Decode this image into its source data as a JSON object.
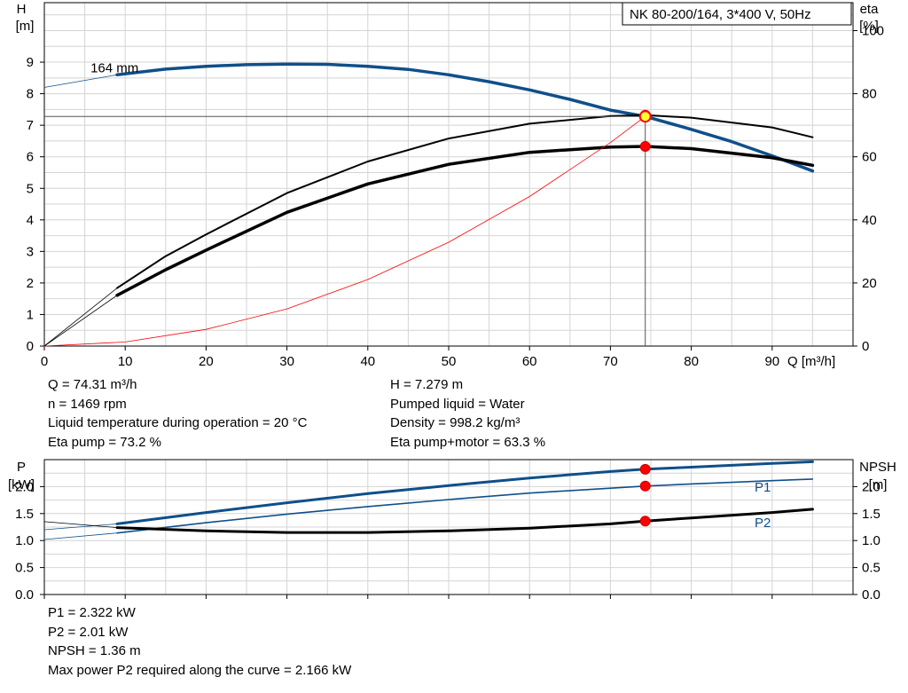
{
  "title_box": "NK 80-200/164, 3*400 V, 50Hz",
  "chart_data": [
    {
      "type": "line",
      "title": "NK 80-200/164, 3*400 V, 50Hz",
      "xlabel": "Q [m³/h]",
      "ylabel_left": "H\n[m]",
      "ylabel_right": "eta\n[%]",
      "xlim": [
        0,
        100
      ],
      "ylim_left": [
        0,
        10
      ],
      "ylim_right": [
        0,
        100
      ],
      "xticks": [
        0,
        10,
        20,
        30,
        40,
        50,
        60,
        70,
        80,
        90
      ],
      "yticks_left": [
        0,
        1,
        2,
        3,
        4,
        5,
        6,
        7,
        8,
        9
      ],
      "yticks_right": [
        0,
        20,
        40,
        60,
        80,
        100
      ],
      "grid": true,
      "series": [
        {
          "name": "164 mm",
          "role": "head",
          "color": "#0f4f8a",
          "x": [
            9,
            15,
            20,
            25,
            30,
            35,
            40,
            45,
            50,
            55,
            60,
            65,
            70,
            74.31,
            80,
            85,
            90,
            95
          ],
          "y": [
            8.6,
            8.78,
            8.87,
            8.92,
            8.94,
            8.93,
            8.87,
            8.77,
            8.6,
            8.38,
            8.12,
            7.82,
            7.48,
            7.279,
            6.87,
            6.48,
            6.03,
            5.55
          ]
        },
        {
          "role": "head-extrapolation",
          "color": "#0f4f8a",
          "x": [
            0,
            9
          ],
          "y": [
            8.2,
            8.6
          ]
        },
        {
          "role": "eta-pump",
          "color": "#000000",
          "x": [
            9,
            15,
            20,
            30,
            40,
            50,
            60,
            70,
            74.31,
            80,
            90,
            95
          ],
          "y": [
            18.4,
            28.5,
            35.4,
            48.5,
            58.5,
            65.8,
            70.5,
            72.9,
            73.2,
            72.4,
            69.3,
            66.2
          ]
        },
        {
          "role": "eta-pump-motor",
          "color": "#000000",
          "x": [
            9,
            15,
            20,
            30,
            40,
            50,
            60,
            70,
            74.31,
            80,
            90,
            95
          ],
          "y": [
            16.1,
            24.2,
            30.4,
            42.4,
            51.4,
            57.6,
            61.4,
            63.1,
            63.3,
            62.6,
            59.7,
            57.3
          ]
        },
        {
          "role": "eta-extrapolation",
          "color": "#000000",
          "x": [
            0,
            9
          ],
          "y": [
            0,
            18.4
          ]
        },
        {
          "role": "system-curve",
          "color": "#ff0000",
          "x": [
            0,
            10,
            20,
            30,
            40,
            50,
            60,
            70,
            74.31
          ],
          "y": [
            0,
            0.13,
            0.53,
            1.18,
            2.11,
            3.29,
            4.74,
            6.45,
            7.279
          ]
        }
      ],
      "operating_point": {
        "Q": 74.31,
        "H": 7.279,
        "eta_pump": 73.2,
        "eta_pump_motor": 63.3
      }
    },
    {
      "type": "line",
      "ylabel_left": "P\n[kW]",
      "ylabel_right": "NPSH\n[m]",
      "xlim": [
        0,
        100
      ],
      "ylim": [
        0,
        2.5
      ],
      "yticks_left": [
        0.0,
        0.5,
        1.0,
        1.5,
        2.0
      ],
      "yticks_right": [
        0.0,
        0.5,
        1.0,
        1.5,
        2.0
      ],
      "grid": true,
      "series": [
        {
          "name": "P1",
          "color": "#0f4f8a",
          "x": [
            9,
            20,
            30,
            40,
            50,
            60,
            70,
            74.31,
            80,
            90,
            95
          ],
          "y": [
            1.31,
            1.52,
            1.7,
            1.87,
            2.02,
            2.16,
            2.28,
            2.322,
            2.36,
            2.43,
            2.46
          ]
        },
        {
          "name": "P2",
          "color": "#0f4f8a",
          "x": [
            9,
            20,
            30,
            40,
            50,
            60,
            70,
            74.31,
            80,
            90,
            95
          ],
          "y": [
            1.14,
            1.33,
            1.49,
            1.63,
            1.76,
            1.88,
            1.97,
            2.01,
            2.05,
            2.11,
            2.14
          ]
        },
        {
          "role": "npsh",
          "color": "#000000",
          "x": [
            9,
            20,
            30,
            40,
            50,
            60,
            70,
            74.31,
            80,
            90,
            95
          ],
          "y": [
            1.24,
            1.18,
            1.15,
            1.15,
            1.18,
            1.23,
            1.31,
            1.36,
            1.42,
            1.52,
            1.58
          ]
        }
      ],
      "operating_point": {
        "P1": 2.322,
        "P2": 2.01,
        "NPSH": 1.36
      }
    }
  ],
  "info_top": {
    "left": [
      "Q = 74.31 m³/h",
      "n = 1469 rpm",
      "Liquid temperature during operation = 20 °C",
      "Eta pump = 73.2 %"
    ],
    "right": [
      "H = 7.279 m",
      "Pumped liquid = Water",
      "Density = 998.2 kg/m³",
      "Eta pump+motor = 63.3 %"
    ]
  },
  "info_bottom": [
    "P1 = 2.322 kW",
    "P2 = 2.01 kW",
    "NPSH = 1.36 m",
    "Max power P2 required along the curve = 2.166 kW"
  ]
}
